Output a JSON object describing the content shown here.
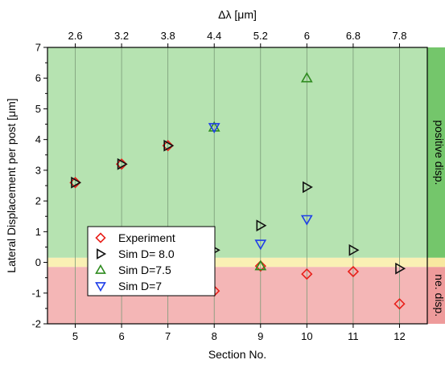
{
  "chart_data": {
    "type": "scatter",
    "xlabel": "Section No.",
    "ylabel": "Lateral Displacement per post [μm]",
    "top_axis_label": "Δλ [μm]",
    "xlim": [
      4.4,
      12.6
    ],
    "ylim": [
      -2,
      7
    ],
    "x_ticks": [
      5,
      6,
      7,
      8,
      9,
      10,
      11,
      12
    ],
    "y_ticks": [
      -2,
      -1,
      0,
      1,
      2,
      3,
      4,
      5,
      6,
      7
    ],
    "x_tick_labels": [
      "5",
      "6",
      "7",
      "8",
      "9",
      "10",
      "11",
      "12"
    ],
    "y_tick_labels": [
      "-2",
      "-1",
      "0",
      "1",
      "2",
      "3",
      "4",
      "5",
      "6",
      "7"
    ],
    "top_ticks": [
      {
        "x": 5,
        "label": "2.6"
      },
      {
        "x": 6,
        "label": "3.2"
      },
      {
        "x": 7,
        "label": "3.8"
      },
      {
        "x": 8,
        "label": "4.4"
      },
      {
        "x": 9,
        "label": "5.2"
      },
      {
        "x": 10,
        "label": "6"
      },
      {
        "x": 11,
        "label": "6.8"
      },
      {
        "x": 12,
        "label": "7.8"
      }
    ],
    "grid": "vertical lines at each section",
    "regions": [
      {
        "from": 0.15,
        "to": 7,
        "color": "#b6e3b1",
        "side_color": "#74c66b",
        "label": "positive disp."
      },
      {
        "from": -0.15,
        "to": 0.15,
        "color": "#faf0b4",
        "side_color": "#f8e8a0",
        "label": ""
      },
      {
        "from": -2,
        "to": -0.15,
        "color": "#f4b6b6",
        "side_color": "#ee9b9b",
        "label": "ne. disp."
      }
    ],
    "legend_position": "lower-left",
    "series": [
      {
        "name": "Experiment",
        "marker": "diamond",
        "color": "#e8201a",
        "points": [
          [
            5,
            2.6
          ],
          [
            6,
            3.2
          ],
          [
            7,
            3.8
          ],
          [
            8,
            -0.93
          ],
          [
            9,
            -0.12
          ],
          [
            10,
            -0.38
          ],
          [
            11,
            -0.3
          ],
          [
            12,
            -1.35
          ]
        ]
      },
      {
        "name": "Sim D= 8.0",
        "marker": "triangle-right",
        "color": "#111111",
        "points": [
          [
            5,
            2.6
          ],
          [
            6,
            3.2
          ],
          [
            7,
            3.8
          ],
          [
            8,
            0.4
          ],
          [
            9,
            1.2
          ],
          [
            10,
            2.45
          ],
          [
            11,
            0.4
          ],
          [
            12,
            -0.2
          ]
        ]
      },
      {
        "name": "Sim D=7.5",
        "marker": "triangle-up",
        "color": "#2e8b1f",
        "points": [
          [
            8,
            4.4
          ],
          [
            9,
            -0.12
          ],
          [
            10,
            6.0
          ]
        ]
      },
      {
        "name": "Sim D=7",
        "marker": "triangle-down",
        "color": "#1f3fe8",
        "points": [
          [
            8,
            4.4
          ],
          [
            9,
            0.6
          ],
          [
            10,
            1.4
          ]
        ]
      }
    ]
  }
}
